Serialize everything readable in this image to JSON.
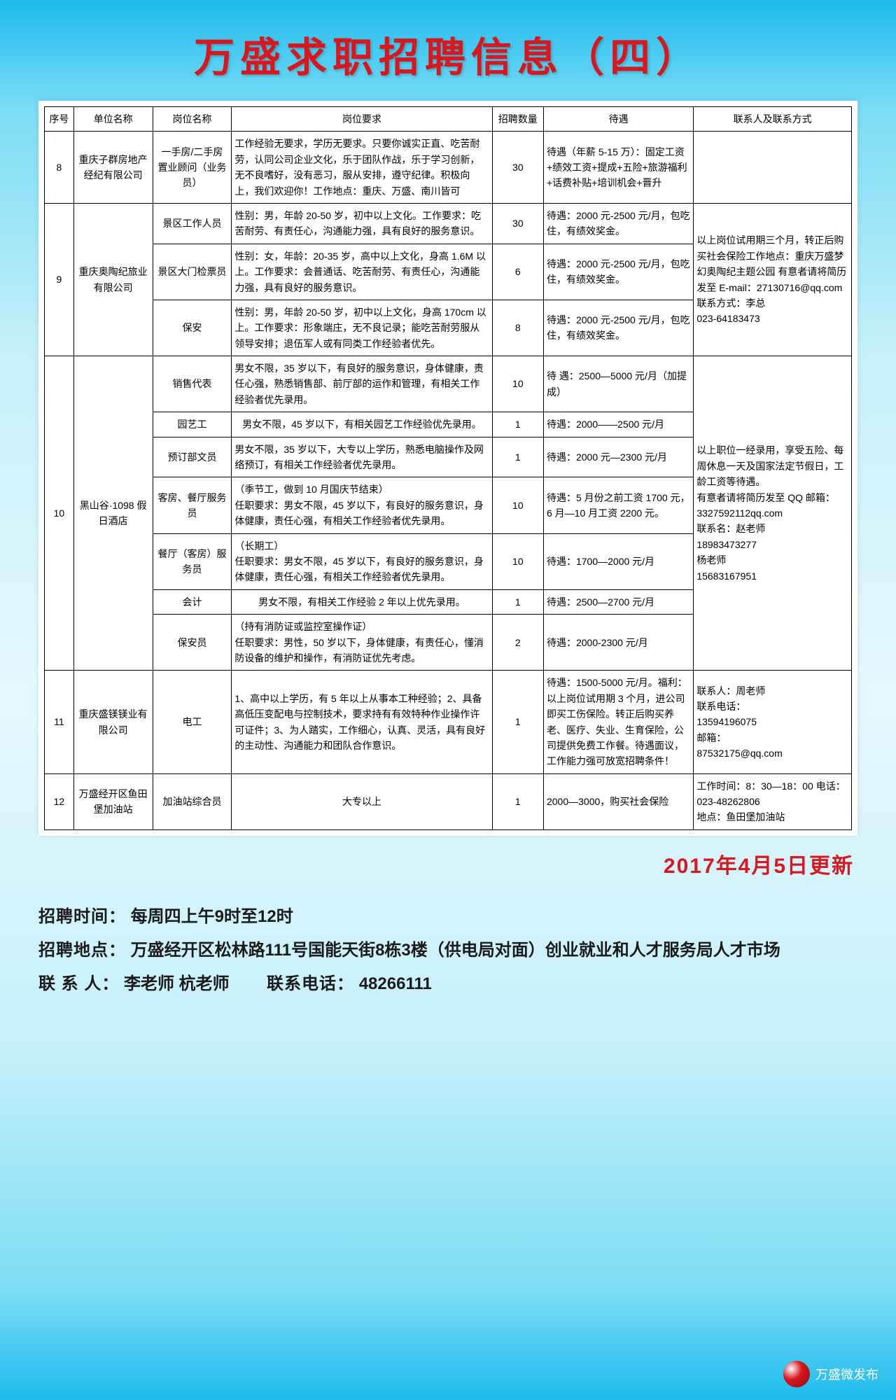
{
  "title": "万盛求职招聘信息（四）",
  "columns": [
    "序号",
    "单位名称",
    "岗位名称",
    "岗位要求",
    "招聘数量",
    "待遇",
    "联系人及联系方式"
  ],
  "companies": [
    {
      "idx": "8",
      "name": "重庆子群房地产经纪有限公司",
      "jobs": [
        {
          "post": "一手房/二手房 置业顾问（业务员）",
          "req": "工作经验无要求，学历无要求。只要你诚实正直、吃苦耐劳，认同公司企业文化，乐于团队作战，乐于学习创新，无不良嗜好，没有恶习，服从安排，遵守纪律。积极向上，我们欢迎你！工作地点：重庆、万盛、南川皆可",
          "count": "30",
          "pay": "待遇（年薪 5-15 万）：固定工资+绩效工资+提成+五险+旅游福利+话费补贴+培训机会+晋升",
          "contact": ""
        }
      ],
      "contact": ""
    },
    {
      "idx": "9",
      "name": "重庆奥陶纪旅业有限公司",
      "contact": "以上岗位试用期三个月，转正后购买社会保险工作地点：重庆万盛梦幻奥陶纪主题公园 有意者请将简历发至 E-mail：27130716@qq.com\n联系方式：李总\n023-64183473",
      "jobs": [
        {
          "post": "景区工作人员",
          "req": "性别：男，年龄 20-50 岁，初中以上文化。工作要求：吃苦耐劳、有责任心，沟通能力强，具有良好的服务意识。",
          "count": "30",
          "pay": "待遇：2000 元-2500 元/月，包吃住，有绩效奖金。"
        },
        {
          "post": "景区大门检票员",
          "req": "性别：女，年龄：20-35 岁，高中以上文化，身高 1.6M 以上。工作要求：会普通话、吃苦耐劳、有责任心，沟通能力强，具有良好的服务意识。",
          "count": "6",
          "pay": "待遇：2000 元-2500 元/月，包吃住，有绩效奖金。"
        },
        {
          "post": "保安",
          "req": "性别：男，年龄 20-50 岁，初中以上文化，身高 170cm 以上。工作要求：形象端庄，无不良记录；能吃苦耐劳服从领导安排；退伍军人或有同类工作经验者优先。",
          "count": "8",
          "pay": "待遇：2000 元-2500 元/月，包吃住，有绩效奖金。"
        }
      ]
    },
    {
      "idx": "10",
      "name": "黑山谷·1098 假日酒店",
      "contact": "以上职位一经录用，享受五险、每周休息一天及国家法定节假日，工龄工资等待遇。\n有意者请将简历发至 QQ 邮箱：\n3327592112qq.com\n联系名：赵老师\n18983473277\n杨老师\n15683167951",
      "jobs": [
        {
          "post": "销售代表",
          "req": "男女不限，35 岁以下，有良好的服务意识，身体健康，责任心强，熟悉销售部、前厅部的运作和管理，有相关工作经验者优先录用。",
          "count": "10",
          "pay": "待 遇：2500—5000 元/月（加提成）"
        },
        {
          "post": "园艺工",
          "req": "男女不限，45 岁以下，有相关园艺工作经验优先录用。",
          "count": "1",
          "pay": "待遇：2000——2500 元/月"
        },
        {
          "post": "预订部文员",
          "req": "男女不限，35 岁以下，大专以上学历，熟悉电脑操作及网络预订，有相关工作经验者优先录用。",
          "count": "1",
          "pay": "待遇：2000 元—2300 元/月"
        },
        {
          "post": "客房、餐厅服务员",
          "req": "（季节工，做到 10 月国庆节结束）\n任职要求：男女不限，45 岁以下，有良好的服务意识，身体健康，责任心强，有相关工作经验者优先录用。",
          "count": "10",
          "pay": "待遇：5 月份之前工资 1700 元，6 月—10 月工资 2200 元。"
        },
        {
          "post": "餐厅（客房）服务员",
          "req": "（长期工）\n任职要求：男女不限，45 岁以下，有良好的服务意识，身体健康，责任心强，有相关工作经验者优先录用。",
          "count": "10",
          "pay": "待遇：1700—2000 元/月"
        },
        {
          "post": "会计",
          "req": "男女不限，有相关工作经验 2 年以上优先录用。",
          "count": "1",
          "pay": "待遇：2500—2700 元/月"
        },
        {
          "post": "保安员",
          "req": "（持有消防证或监控室操作证）\n任职要求：男性，50 岁以下，身体健康，有责任心，懂消防设备的维护和操作，有消防证优先考虑。",
          "count": "2",
          "pay": "待遇：2000-2300 元/月"
        }
      ]
    },
    {
      "idx": "11",
      "name": "重庆盛镁镁业有限公司",
      "contact": "联系人：周老师\n联系电话：\n13594196075\n邮箱：\n87532175@qq.com",
      "jobs": [
        {
          "post": "电工",
          "req": "1、高中以上学历，有 5 年以上从事本工种经验；2、具备高低压变配电与控制技术，要求持有有效特种作业操作许可证件；3、为人踏实，工作细心，认真、灵活，具有良好的主动性、沟通能力和团队合作意识。",
          "count": "1",
          "pay": "待遇：1500-5000 元/月。福利：以上岗位试用期 3 个月，进公司即买工伤保险。转正后购买养老、医疗、失业、生育保险，公司提供免费工作餐。待遇面议，工作能力强可放宽招聘条件！"
        }
      ]
    },
    {
      "idx": "12",
      "name": "万盛经开区鱼田堡加油站",
      "contact": "工作时间：8：30—18：00 电话：023-48262806\n地点：鱼田堡加油站",
      "jobs": [
        {
          "post": "加油站综合员",
          "req": "大专以上",
          "count": "1",
          "pay": "2000—3000，购买社会保险"
        }
      ]
    }
  ],
  "updateDate": "2017年4月5日更新",
  "footer": {
    "timeLabel": "招聘时间：",
    "time": "每周四上午9时至12时",
    "placeLabel": "招聘地点：",
    "place": "万盛经开区松林路111号国能天街8栋3楼（供电局对面）创业就业和人才服务局人才市场",
    "contactLabel": "联 系 人：",
    "contact": "李老师 杭老师",
    "phoneLabel": "联系电话：",
    "phone": "48266111"
  },
  "watermark": "万盛微发布"
}
